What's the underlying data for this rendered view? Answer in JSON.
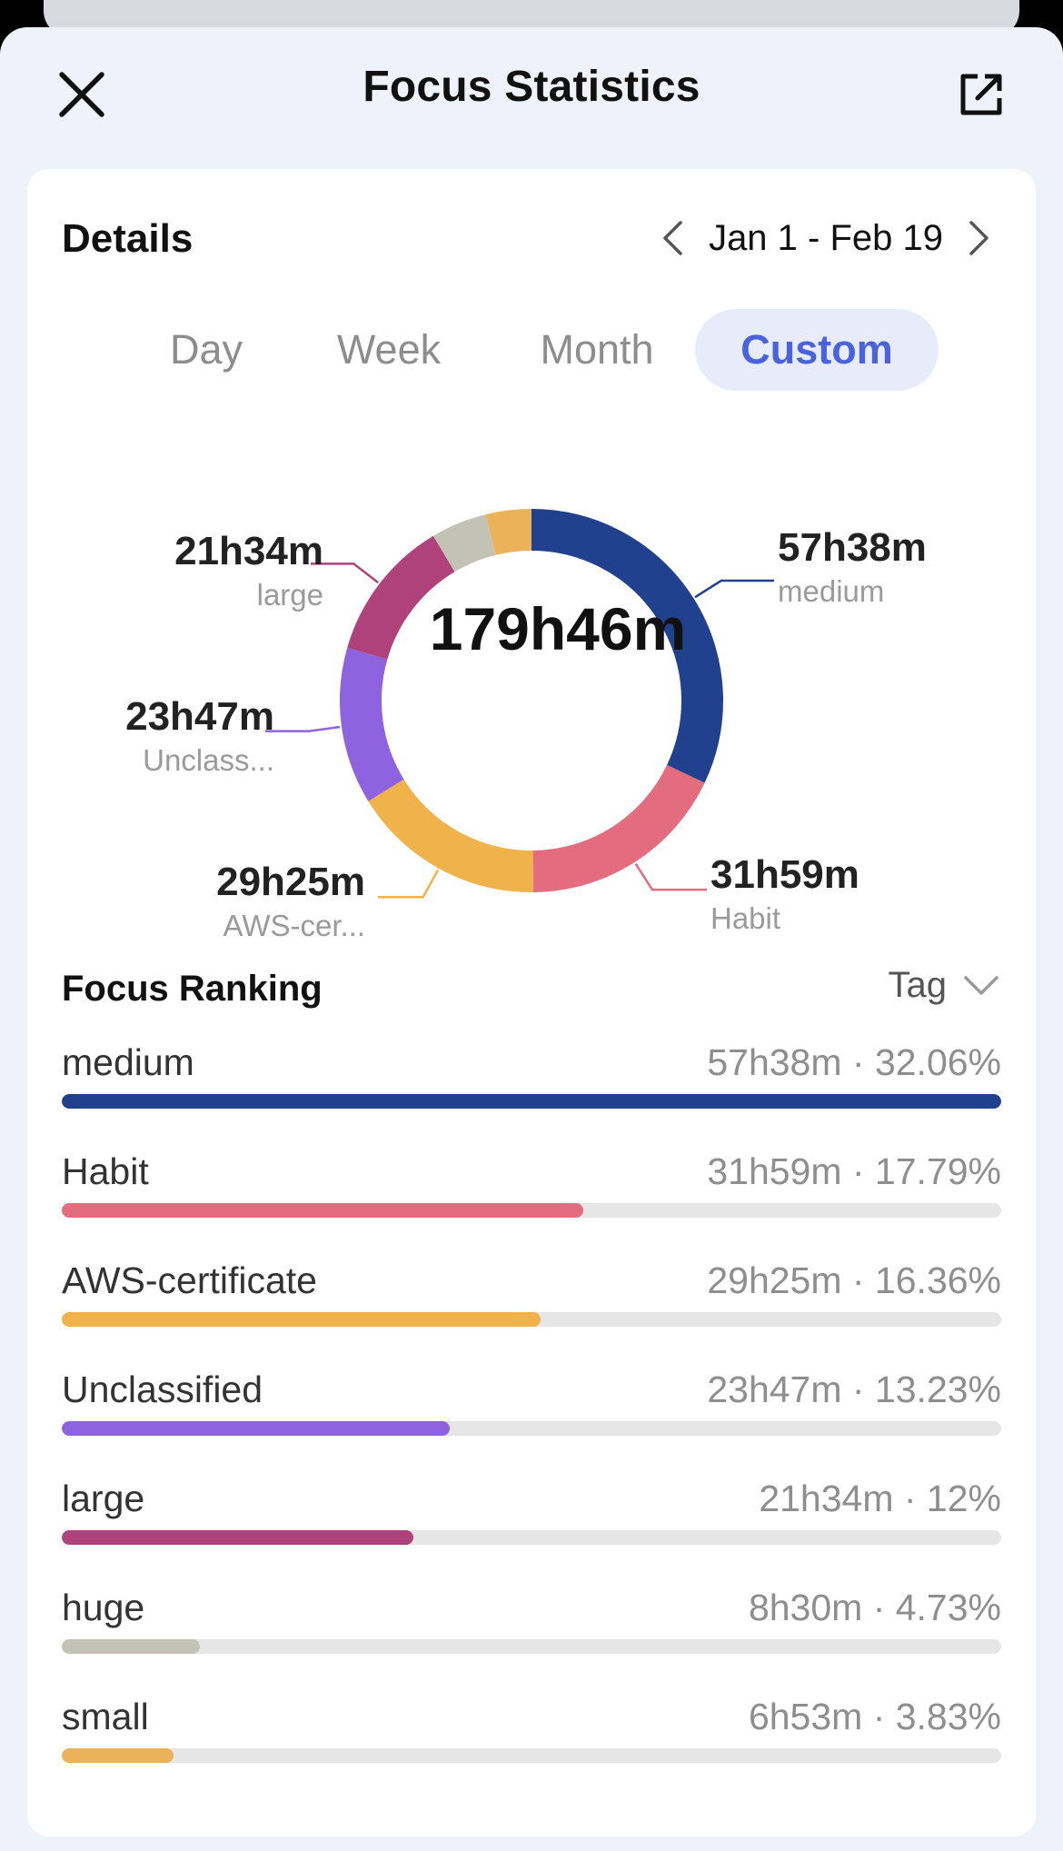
{
  "header": {
    "title": "Focus Statistics",
    "close_icon": "close-icon",
    "share_icon": "share-external-icon"
  },
  "details": {
    "title": "Details",
    "date_range": "Jan 1 - Feb 19",
    "periods": [
      "Day",
      "Week",
      "Month",
      "Custom"
    ],
    "selected_period": "Custom",
    "total": "179h46m"
  },
  "donut_segments": [
    {
      "name": "medium",
      "callout_label": "medium",
      "duration": "57h38m",
      "percent": 32.06,
      "color": "#21418f"
    },
    {
      "name": "Habit",
      "callout_label": "Habit",
      "duration": "31h59m",
      "percent": 17.79,
      "color": "#e36c7f"
    },
    {
      "name": "AWS-certificate",
      "callout_label": "AWS-cer...",
      "duration": "29h25m",
      "percent": 16.36,
      "color": "#f0b24b"
    },
    {
      "name": "Unclassified",
      "callout_label": "Unclass...",
      "duration": "23h47m",
      "percent": 13.23,
      "color": "#8f63e0"
    },
    {
      "name": "large",
      "callout_label": "large",
      "duration": "21h34m",
      "percent": 12,
      "color": "#b0427b"
    },
    {
      "name": "huge",
      "callout_label": "",
      "duration": "8h30m",
      "percent": 4.73,
      "color": "#c2c3b4"
    },
    {
      "name": "small",
      "callout_label": "",
      "duration": "6h53m",
      "percent": 3.83,
      "color": "#ebb25a"
    }
  ],
  "ranking": {
    "title": "Focus Ranking",
    "filter_label": "Tag",
    "items": [
      {
        "name": "medium",
        "stats": "57h38m · 32.06%",
        "fill": 1.0,
        "color": "#21418f"
      },
      {
        "name": "Habit",
        "stats": "31h59m · 17.79%",
        "fill": 0.555,
        "color": "#e36c7f"
      },
      {
        "name": "AWS-certificate",
        "stats": "29h25m · 16.36%",
        "fill": 0.51,
        "color": "#f0b24b"
      },
      {
        "name": "Unclassified",
        "stats": "23h47m · 13.23%",
        "fill": 0.413,
        "color": "#8f63e0"
      },
      {
        "name": "large",
        "stats": "21h34m · 12%",
        "fill": 0.374,
        "color": "#b0427b"
      },
      {
        "name": "huge",
        "stats": "8h30m · 4.73%",
        "fill": 0.147,
        "color": "#c2c3b4"
      },
      {
        "name": "small",
        "stats": "6h53m · 3.83%",
        "fill": 0.119,
        "color": "#ebb25a"
      }
    ]
  }
}
